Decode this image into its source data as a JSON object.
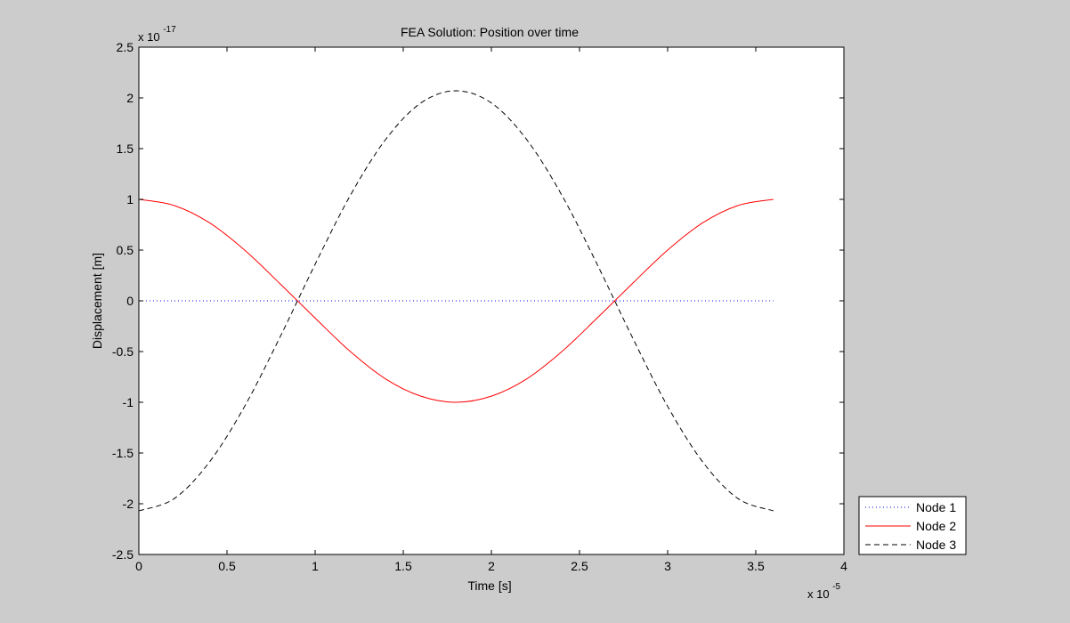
{
  "chart_data": {
    "type": "line",
    "title": "FEA Solution: Position over time",
    "xlabel": "Time [s]",
    "ylabel": "Displacement [m]",
    "x_multiplier": {
      "base": "x 10",
      "exponent": "-5"
    },
    "y_multiplier": {
      "base": "x 10",
      "exponent": "-17"
    },
    "xlim": [
      0,
      4
    ],
    "ylim": [
      -2.5,
      2.5
    ],
    "xticks": [
      0,
      0.5,
      1,
      1.5,
      2,
      2.5,
      3,
      3.5,
      4
    ],
    "xtick_labels": [
      "0",
      "0.5",
      "1",
      "1.5",
      "2",
      "2.5",
      "3",
      "3.5",
      "4"
    ],
    "yticks": [
      2.5,
      2,
      1.5,
      1,
      0.5,
      0,
      -0.5,
      -1,
      -1.5,
      -2,
      -2.5
    ],
    "ytick_labels": [
      "2.5",
      "2",
      "1.5",
      "1",
      "0.5",
      "0",
      "-0.5",
      "-1",
      "-1.5",
      "-2",
      "-2.5"
    ],
    "grid": false,
    "legend_position": "outside bottom-right",
    "x": [
      0,
      0.2,
      0.4,
      0.6,
      0.8,
      1.0,
      1.2,
      1.4,
      1.6,
      1.8,
      2.0,
      2.2,
      2.4,
      2.6,
      2.8,
      3.0,
      3.2,
      3.4,
      3.6
    ],
    "series": [
      {
        "name": "Node 1",
        "color": "#0000ff",
        "style": "dotted",
        "values": [
          0,
          0,
          0,
          0,
          0,
          0,
          0,
          0,
          0,
          0,
          0,
          0,
          0,
          0,
          0,
          0,
          0,
          0,
          0
        ]
      },
      {
        "name": "Node 2",
        "color": "#ff0000",
        "style": "solid",
        "values": [
          1.0,
          0.94,
          0.77,
          0.5,
          0.17,
          -0.17,
          -0.5,
          -0.77,
          -0.94,
          -1.0,
          -0.94,
          -0.77,
          -0.5,
          -0.17,
          0.17,
          0.5,
          0.77,
          0.94,
          1.0
        ]
      },
      {
        "name": "Node 3",
        "color": "#000000",
        "style": "dashed",
        "values": [
          -2.07,
          -1.95,
          -1.59,
          -1.04,
          -0.36,
          0.36,
          1.04,
          1.59,
          1.95,
          2.07,
          1.95,
          1.59,
          1.04,
          0.36,
          -0.36,
          -1.04,
          -1.59,
          -1.95,
          -2.07
        ]
      }
    ]
  }
}
